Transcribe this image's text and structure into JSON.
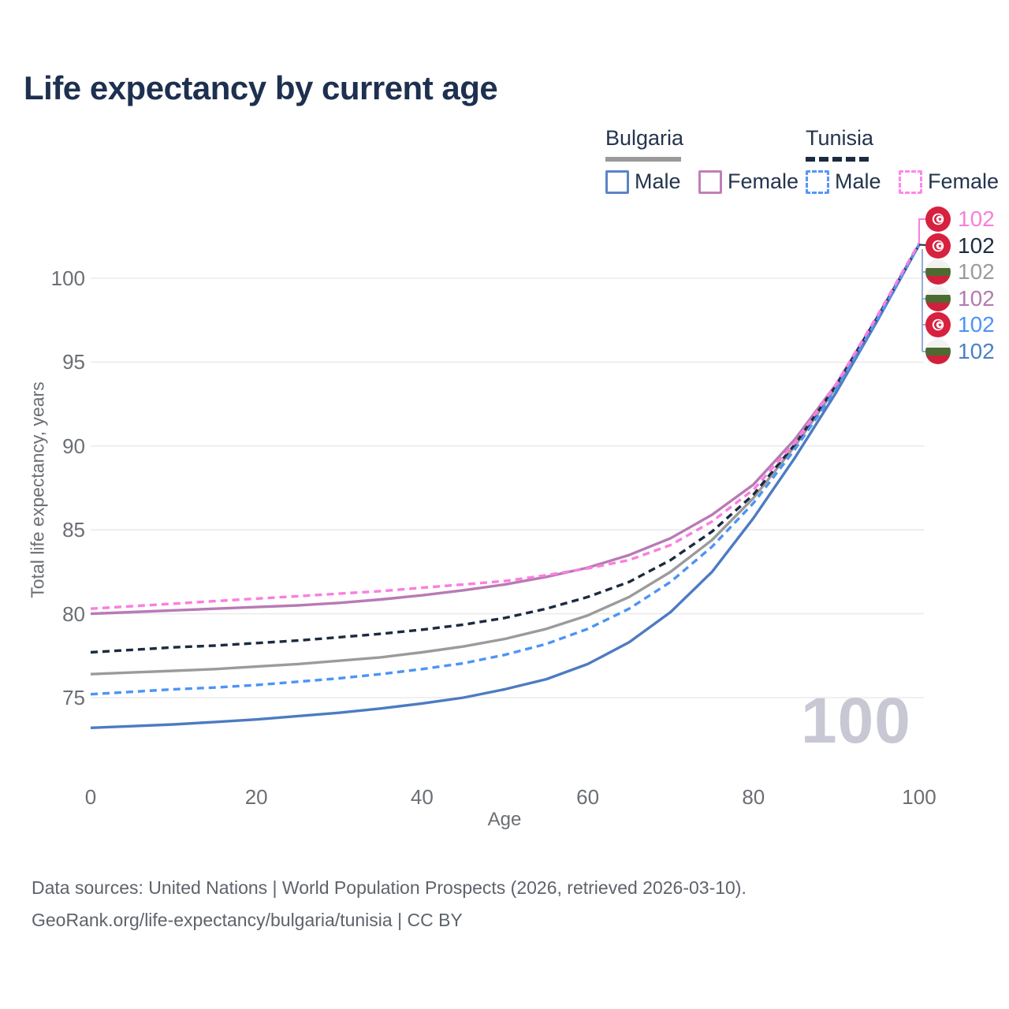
{
  "header": {
    "title": "Life expectancy by current age"
  },
  "legend": {
    "groups": [
      {
        "label": "Bulgaria",
        "line_style": "solid",
        "underline_color": "#9a9a9a",
        "items": [
          {
            "label": "Male",
            "color": "#4d7bc2",
            "dashed": false
          },
          {
            "label": "Female",
            "color": "#b87ab5",
            "dashed": false
          }
        ]
      },
      {
        "label": "Tunisia",
        "line_style": "dashed",
        "underline_color": "#1b2b40",
        "items": [
          {
            "label": "Male",
            "color": "#4d94f5",
            "dashed": true
          },
          {
            "label": "Female",
            "color": "#fb7ede",
            "dashed": true
          }
        ]
      }
    ]
  },
  "watermark": {
    "text": "100"
  },
  "end_labels": [
    {
      "flag": "tunisia",
      "series": "Tunisia Female",
      "value": "102",
      "color": "#f87fd8"
    },
    {
      "flag": "tunisia",
      "series": "Tunisia Both sexes",
      "value": "102",
      "color": "#1c2c42"
    },
    {
      "flag": "bulgaria",
      "series": "Bulgaria Both sexes",
      "value": "102",
      "color": "#9b9b9b"
    },
    {
      "flag": "bulgaria",
      "series": "Bulgaria Female",
      "value": "102",
      "color": "#b47ab2"
    },
    {
      "flag": "tunisia",
      "series": "Tunisia Male",
      "value": "102",
      "color": "#4d94f5"
    },
    {
      "flag": "bulgaria",
      "series": "Bulgaria Male",
      "value": "102",
      "color": "#4e7fc4"
    }
  ],
  "footer": {
    "line1": "Data sources: United Nations | World Population Prospects (2026, retrieved 2026-03-10).",
    "line2": "GeoRank.org/life-expectancy/bulgaria/tunisia | CC BY"
  },
  "chart_data": {
    "type": "line",
    "title": "Life expectancy by current age",
    "xlabel": "Age",
    "ylabel": "Total life expectancy, years",
    "x_ticks": [
      0,
      20,
      40,
      60,
      80,
      100
    ],
    "y_ticks": [
      75,
      80,
      85,
      90,
      95,
      100
    ],
    "xlim": [
      0,
      100
    ],
    "ylim": [
      72,
      102.5
    ],
    "grid": true,
    "legend_position": "top-right",
    "x": [
      0,
      5,
      10,
      15,
      20,
      25,
      30,
      35,
      40,
      45,
      50,
      55,
      60,
      65,
      70,
      75,
      80,
      85,
      90,
      95,
      100
    ],
    "series": [
      {
        "name": "Bulgaria Both sexes",
        "country": "Bulgaria",
        "sex": "both",
        "line": "solid",
        "color": "#9b9b9b",
        "end_value": 102,
        "values": [
          76.4,
          76.5,
          76.6,
          76.7,
          76.85,
          77.0,
          77.2,
          77.4,
          77.7,
          78.05,
          78.5,
          79.1,
          79.9,
          81.0,
          82.5,
          84.4,
          86.9,
          90.0,
          93.5,
          97.6,
          102.0
        ]
      },
      {
        "name": "Bulgaria Female",
        "country": "Bulgaria",
        "sex": "female",
        "line": "solid",
        "color": "#b87ab5",
        "end_value": 102,
        "values": [
          80.0,
          80.1,
          80.2,
          80.3,
          80.4,
          80.5,
          80.65,
          80.85,
          81.1,
          81.4,
          81.75,
          82.2,
          82.75,
          83.5,
          84.5,
          85.9,
          87.7,
          90.4,
          93.7,
          97.7,
          102.0
        ]
      },
      {
        "name": "Bulgaria Male",
        "country": "Bulgaria",
        "sex": "male",
        "line": "solid",
        "color": "#4d7bc2",
        "end_value": 102,
        "values": [
          73.2,
          73.3,
          73.4,
          73.55,
          73.7,
          73.9,
          74.1,
          74.35,
          74.65,
          75.0,
          75.5,
          76.1,
          77.0,
          78.3,
          80.1,
          82.5,
          85.7,
          89.3,
          93.2,
          97.5,
          102.0
        ]
      },
      {
        "name": "Tunisia Both sexes",
        "country": "Tunisia",
        "sex": "both",
        "line": "dashed",
        "color": "#1b2b40",
        "end_value": 102,
        "values": [
          77.7,
          77.85,
          78.0,
          78.1,
          78.25,
          78.4,
          78.6,
          78.8,
          79.05,
          79.35,
          79.75,
          80.3,
          81.0,
          81.9,
          83.2,
          84.9,
          87.1,
          90.1,
          93.6,
          97.7,
          102.0
        ]
      },
      {
        "name": "Tunisia Male",
        "country": "Tunisia",
        "sex": "male",
        "line": "dashed",
        "color": "#4d94f5",
        "end_value": 102,
        "values": [
          75.2,
          75.35,
          75.5,
          75.6,
          75.75,
          75.95,
          76.15,
          76.4,
          76.7,
          77.05,
          77.55,
          78.2,
          79.1,
          80.3,
          81.9,
          84.0,
          86.6,
          89.8,
          93.4,
          97.6,
          102.0
        ]
      },
      {
        "name": "Tunisia Female",
        "country": "Tunisia",
        "sex": "female",
        "line": "dashed",
        "color": "#fb7ede",
        "end_value": 102.1,
        "values": [
          80.3,
          80.45,
          80.6,
          80.75,
          80.9,
          81.05,
          81.2,
          81.35,
          81.55,
          81.75,
          81.95,
          82.3,
          82.7,
          83.2,
          84.1,
          85.5,
          87.4,
          90.2,
          93.7,
          97.8,
          102.1
        ]
      }
    ]
  }
}
